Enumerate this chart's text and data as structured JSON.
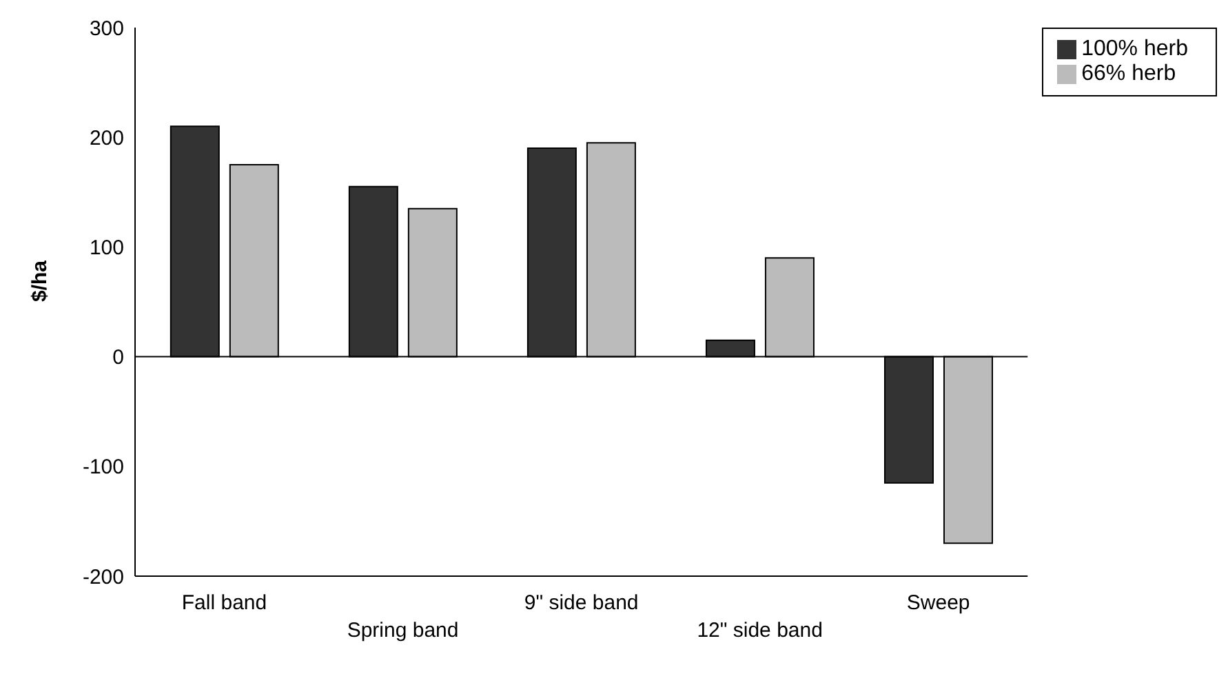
{
  "chart_data": {
    "type": "bar",
    "ylabel": "$/ha",
    "categories": [
      "Fall band",
      "Spring band",
      "9\" side band",
      "12\" side band",
      "Sweep"
    ],
    "series": [
      {
        "name": "100% herb",
        "color": "#333333",
        "values": [
          210,
          155,
          190,
          15,
          -115
        ]
      },
      {
        "name": "66% herb",
        "color": "#bbbbbb",
        "values": [
          175,
          135,
          195,
          90,
          -170
        ]
      }
    ],
    "ylim": [
      -200,
      300
    ],
    "yticks": [
      -200,
      -100,
      0,
      100,
      200,
      300
    ],
    "grid": false,
    "ref_lines": [
      {
        "axis": "y",
        "value": 0,
        "color": "#000000"
      }
    ],
    "legend": "top right"
  }
}
